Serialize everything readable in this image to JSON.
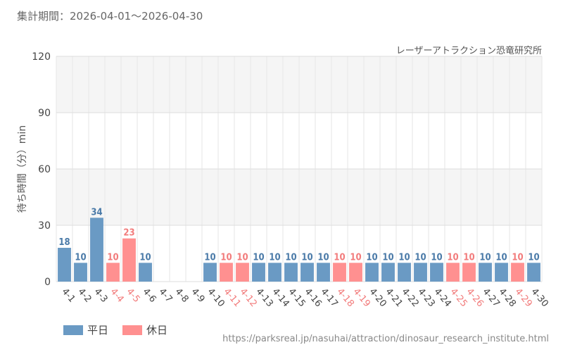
{
  "header": {
    "period": "集計期間：2026-04-01～2026-04-30",
    "attraction": "レーザーアトラクション恐竜研究所"
  },
  "footer": {
    "url": "https://parksreal.jp/nasuhai/attraction/dinosaur_research_institute.html"
  },
  "colors": {
    "weekday": "#6a9ac4",
    "holiday": "#ff9090",
    "weekday_text": "#4a7aa8",
    "holiday_text": "#f27b7b",
    "band": "#f5f5f5",
    "grid": "#dddddd"
  },
  "chart_data": {
    "type": "bar",
    "ylabel": "待ち時間（分）min",
    "ylim": [
      0,
      120
    ],
    "yticks": [
      0,
      30,
      60,
      90,
      120
    ],
    "grid": true,
    "legend_position": "bottom-left",
    "legend": [
      {
        "label": "平日",
        "key": "weekday"
      },
      {
        "label": "休日",
        "key": "holiday"
      }
    ],
    "categories": [
      "4-1",
      "4-2",
      "4-3",
      "4-4",
      "4-5",
      "4-6",
      "4-7",
      "4-8",
      "4-9",
      "4-10",
      "4-11",
      "4-12",
      "4-13",
      "4-14",
      "4-15",
      "4-16",
      "4-17",
      "4-18",
      "4-19",
      "4-20",
      "4-21",
      "4-22",
      "4-23",
      "4-24",
      "4-25",
      "4-26",
      "4-27",
      "4-28",
      "4-29",
      "4-30"
    ],
    "values": [
      18,
      10,
      34,
      10,
      23,
      10,
      null,
      null,
      null,
      10,
      10,
      10,
      10,
      10,
      10,
      10,
      10,
      10,
      10,
      10,
      10,
      10,
      10,
      10,
      10,
      10,
      10,
      10,
      10,
      10
    ],
    "day_type": [
      "weekday",
      "weekday",
      "weekday",
      "holiday",
      "holiday",
      "weekday",
      "weekday",
      "weekday",
      "weekday",
      "weekday",
      "holiday",
      "holiday",
      "weekday",
      "weekday",
      "weekday",
      "weekday",
      "weekday",
      "holiday",
      "holiday",
      "weekday",
      "weekday",
      "weekday",
      "weekday",
      "weekday",
      "holiday",
      "holiday",
      "weekday",
      "weekday",
      "holiday",
      "weekday"
    ]
  }
}
